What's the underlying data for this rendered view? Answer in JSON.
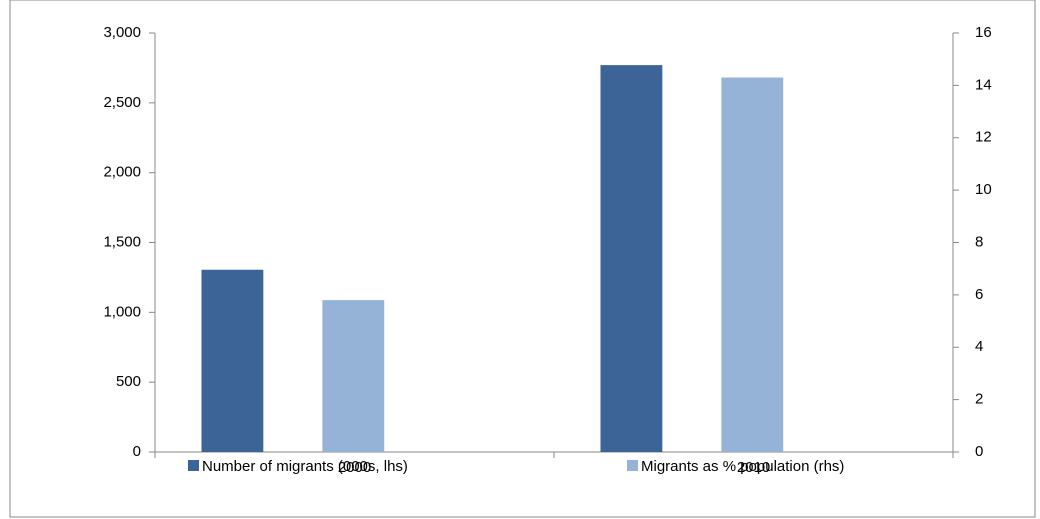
{
  "chart_data": {
    "type": "bar",
    "categories": [
      "2000",
      "2010"
    ],
    "series": [
      {
        "name": "Number of migrants (000s, lhs)",
        "color": "#3d6496",
        "values": [
          1305,
          2770
        ]
      },
      {
        "name": "Migrants as % population (rhs)",
        "color": "#95b3d7",
        "values": [
          5.8,
          14.3
        ],
        "axis": "y2"
      }
    ],
    "ylim": [
      0,
      3000
    ],
    "yticks": [
      0,
      500,
      {
        "value": 1000,
        "label": "1,000"
      },
      {
        "value": 1500,
        "label": "1,500"
      },
      {
        "value": 2000,
        "label": "2,000"
      },
      {
        "value": 2500,
        "label": "2,500"
      },
      {
        "value": 3000,
        "label": "3,000"
      }
    ],
    "y2lim": [
      0,
      16
    ],
    "y2ticks": [
      0,
      2,
      4,
      6,
      8,
      10,
      12,
      14,
      16
    ],
    "legend": "bottom"
  }
}
